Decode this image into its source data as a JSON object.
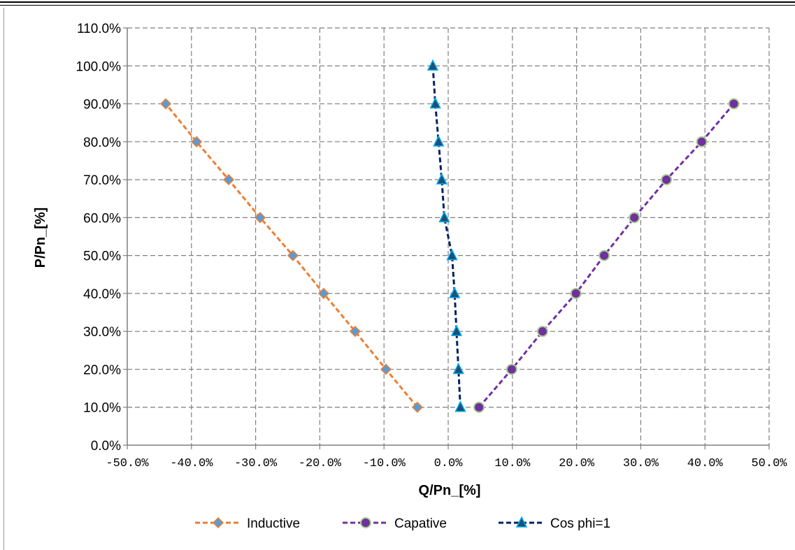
{
  "chart_data": {
    "type": "line",
    "xlabel": "Q/Pn_[%]",
    "ylabel": "P/Pn_[%]",
    "xlim": [
      -50,
      50
    ],
    "ylim": [
      0,
      110
    ],
    "x_tick_labels": [
      "-50.0%",
      "-40.0%",
      "-30.0%",
      "-20.0%",
      "-10.0%",
      "0.0%",
      "10.0%",
      "20.0%",
      "30.0%",
      "40.0%",
      "50.0%"
    ],
    "x_tick_values": [
      -50,
      -40,
      -30,
      -20,
      -10,
      0,
      10,
      20,
      30,
      40,
      50
    ],
    "y_tick_labels": [
      "0.0%",
      "10.0%",
      "20.0%",
      "30.0%",
      "40.0%",
      "50.0%",
      "60.0%",
      "70.0%",
      "80.0%",
      "90.0%",
      "100.0%",
      "110.0%"
    ],
    "y_tick_values": [
      0,
      10,
      20,
      30,
      40,
      50,
      60,
      70,
      80,
      90,
      100,
      110
    ],
    "grid": true,
    "legend_position": "bottom",
    "series": [
      {
        "name": "Inductive",
        "color": "#ED7D31",
        "marker": "diamond",
        "marker_fill": "#5B9BD5",
        "marker_stroke": "#ED7D31",
        "points": [
          [
            -4.8,
            10
          ],
          [
            -9.7,
            20
          ],
          [
            -14.5,
            30
          ],
          [
            -19.4,
            40
          ],
          [
            -24.2,
            50
          ],
          [
            -29.3,
            60
          ],
          [
            -34.2,
            70
          ],
          [
            -39.2,
            80
          ],
          [
            -44.0,
            90
          ]
        ]
      },
      {
        "name": "Capative",
        "color": "#7030A0",
        "marker": "circle",
        "marker_fill": "#7030A0",
        "marker_stroke": "#A9D18E",
        "points": [
          [
            4.8,
            10
          ],
          [
            9.9,
            20
          ],
          [
            14.7,
            30
          ],
          [
            19.9,
            40
          ],
          [
            24.3,
            50
          ],
          [
            29.0,
            60
          ],
          [
            34.0,
            70
          ],
          [
            39.5,
            80
          ],
          [
            44.5,
            90
          ]
        ]
      },
      {
        "name": "Cos phi=1",
        "color": "#002060",
        "marker": "triangle",
        "marker_fill": "#1F4E79",
        "marker_stroke": "#00B0F0",
        "points": [
          [
            1.9,
            10
          ],
          [
            1.6,
            20
          ],
          [
            1.3,
            30
          ],
          [
            1.0,
            40
          ],
          [
            0.6,
            50
          ],
          [
            -0.6,
            60
          ],
          [
            -1.0,
            70
          ],
          [
            -1.5,
            80
          ],
          [
            -2.0,
            90
          ],
          [
            -2.4,
            100
          ]
        ]
      }
    ]
  }
}
